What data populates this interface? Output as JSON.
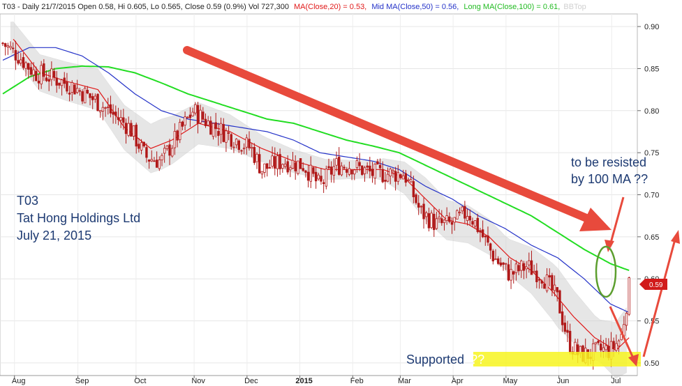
{
  "header": {
    "prefix": "T03 - Daily 21/7/2015 Open 0.58, Hi 0.605, Lo 0.565, Close 0.59 (0.9%) Vol 727,300",
    "ma20_label": "MA(Close,20) = 0.53,",
    "ma50_label": "Mid MA(Close,50) = 0.56,",
    "ma100_label": "Long MA(Close,100) = 0.61,",
    "watermark": "BBTop"
  },
  "annotations": {
    "ticker": "T03",
    "company": "Tat Hong Holdings Ltd",
    "date": "July 21, 2015",
    "resist_line1": "to be resisted",
    "resist_line2": "by 100 MA ??",
    "support_text": "Supported",
    "support_marks": "??"
  },
  "price_tag": "0.59",
  "colors": {
    "candle": "#b01818",
    "ma20": "#e01818",
    "ma50": "#2432c8",
    "ma100": "#22dd22",
    "band": "#cfcfcf",
    "arrow": "#e84a3c",
    "ellipse": "#5c9e2e",
    "support_zone": "#f7f520",
    "text_annotation": "#1d3a72"
  },
  "chart_data": {
    "type": "candlestick",
    "title": "T03 - Daily 21/7/2015",
    "ylim": [
      0.485,
      0.915
    ],
    "y_ticks": [
      0.5,
      0.55,
      0.6,
      0.65,
      0.7,
      0.75,
      0.8,
      0.85,
      0.9
    ],
    "x_ticks": [
      "Aug",
      "Sep",
      "Oct",
      "Nov",
      "Dec",
      "2015",
      "Feb",
      "Mar",
      "Apr",
      "May",
      "Jun",
      "Jul"
    ],
    "x_tick_month_index": [
      0.3,
      1.5,
      2.6,
      3.7,
      4.7,
      5.7,
      6.7,
      7.6,
      8.6,
      9.6,
      10.6,
      11.6
    ],
    "grid": true,
    "close_anchors": [
      {
        "t": 0.0,
        "v": 0.88
      },
      {
        "t": 0.3,
        "v": 0.865
      },
      {
        "t": 0.6,
        "v": 0.845
      },
      {
        "t": 0.9,
        "v": 0.84
      },
      {
        "t": 1.3,
        "v": 0.83
      },
      {
        "t": 1.8,
        "v": 0.81
      },
      {
        "t": 2.1,
        "v": 0.795
      },
      {
        "t": 2.4,
        "v": 0.78
      },
      {
        "t": 2.7,
        "v": 0.745
      },
      {
        "t": 3.0,
        "v": 0.74
      },
      {
        "t": 3.3,
        "v": 0.77
      },
      {
        "t": 3.6,
        "v": 0.8
      },
      {
        "t": 3.9,
        "v": 0.785
      },
      {
        "t": 4.3,
        "v": 0.77
      },
      {
        "t": 4.7,
        "v": 0.755
      },
      {
        "t": 4.9,
        "v": 0.73
      },
      {
        "t": 5.3,
        "v": 0.74
      },
      {
        "t": 5.7,
        "v": 0.735
      },
      {
        "t": 6.0,
        "v": 0.71
      },
      {
        "t": 6.3,
        "v": 0.735
      },
      {
        "t": 6.6,
        "v": 0.735
      },
      {
        "t": 7.0,
        "v": 0.725
      },
      {
        "t": 7.3,
        "v": 0.725
      },
      {
        "t": 7.6,
        "v": 0.725
      },
      {
        "t": 7.9,
        "v": 0.68
      },
      {
        "t": 8.2,
        "v": 0.665
      },
      {
        "t": 8.5,
        "v": 0.665
      },
      {
        "t": 8.8,
        "v": 0.68
      },
      {
        "t": 9.0,
        "v": 0.66
      },
      {
        "t": 9.3,
        "v": 0.625
      },
      {
        "t": 9.6,
        "v": 0.605
      },
      {
        "t": 9.9,
        "v": 0.615
      },
      {
        "t": 10.2,
        "v": 0.605
      },
      {
        "t": 10.5,
        "v": 0.575
      },
      {
        "t": 10.7,
        "v": 0.525
      },
      {
        "t": 10.9,
        "v": 0.51
      },
      {
        "t": 11.1,
        "v": 0.51
      },
      {
        "t": 11.3,
        "v": 0.515
      },
      {
        "t": 11.5,
        "v": 0.515
      },
      {
        "t": 11.7,
        "v": 0.53
      },
      {
        "t": 11.85,
        "v": 0.59
      }
    ],
    "ma20_anchors": [
      {
        "t": 0.2,
        "v": 0.885
      },
      {
        "t": 0.7,
        "v": 0.845
      },
      {
        "t": 1.2,
        "v": 0.835
      },
      {
        "t": 1.8,
        "v": 0.825
      },
      {
        "t": 2.3,
        "v": 0.78
      },
      {
        "t": 2.8,
        "v": 0.755
      },
      {
        "t": 3.2,
        "v": 0.765
      },
      {
        "t": 3.7,
        "v": 0.785
      },
      {
        "t": 4.3,
        "v": 0.775
      },
      {
        "t": 4.9,
        "v": 0.755
      },
      {
        "t": 5.5,
        "v": 0.74
      },
      {
        "t": 6.1,
        "v": 0.73
      },
      {
        "t": 6.6,
        "v": 0.73
      },
      {
        "t": 7.2,
        "v": 0.73
      },
      {
        "t": 7.6,
        "v": 0.72
      },
      {
        "t": 8.0,
        "v": 0.695
      },
      {
        "t": 8.4,
        "v": 0.67
      },
      {
        "t": 8.8,
        "v": 0.665
      },
      {
        "t": 9.2,
        "v": 0.65
      },
      {
        "t": 9.6,
        "v": 0.625
      },
      {
        "t": 10.0,
        "v": 0.61
      },
      {
        "t": 10.4,
        "v": 0.585
      },
      {
        "t": 10.8,
        "v": 0.555
      },
      {
        "t": 11.2,
        "v": 0.53
      },
      {
        "t": 11.6,
        "v": 0.515
      },
      {
        "t": 11.85,
        "v": 0.53
      }
    ],
    "ma50_anchors": [
      {
        "t": 0.0,
        "v": 0.86
      },
      {
        "t": 0.5,
        "v": 0.875
      },
      {
        "t": 1.0,
        "v": 0.875
      },
      {
        "t": 1.5,
        "v": 0.865
      },
      {
        "t": 2.0,
        "v": 0.845
      },
      {
        "t": 2.5,
        "v": 0.82
      },
      {
        "t": 3.0,
        "v": 0.8
      },
      {
        "t": 3.5,
        "v": 0.79
      },
      {
        "t": 4.0,
        "v": 0.785
      },
      {
        "t": 4.5,
        "v": 0.78
      },
      {
        "t": 5.0,
        "v": 0.775
      },
      {
        "t": 5.5,
        "v": 0.765
      },
      {
        "t": 6.0,
        "v": 0.75
      },
      {
        "t": 6.5,
        "v": 0.745
      },
      {
        "t": 7.0,
        "v": 0.74
      },
      {
        "t": 7.5,
        "v": 0.73
      },
      {
        "t": 8.0,
        "v": 0.71
      },
      {
        "t": 8.5,
        "v": 0.695
      },
      {
        "t": 9.0,
        "v": 0.675
      },
      {
        "t": 9.5,
        "v": 0.66
      },
      {
        "t": 10.0,
        "v": 0.64
      },
      {
        "t": 10.5,
        "v": 0.625
      },
      {
        "t": 11.0,
        "v": 0.6
      },
      {
        "t": 11.5,
        "v": 0.57
      },
      {
        "t": 11.85,
        "v": 0.56
      }
    ],
    "ma100_anchors": [
      {
        "t": 0.0,
        "v": 0.82
      },
      {
        "t": 0.5,
        "v": 0.84
      },
      {
        "t": 1.0,
        "v": 0.85
      },
      {
        "t": 1.5,
        "v": 0.853
      },
      {
        "t": 2.0,
        "v": 0.852
      },
      {
        "t": 2.5,
        "v": 0.845
      },
      {
        "t": 3.0,
        "v": 0.833
      },
      {
        "t": 3.5,
        "v": 0.82
      },
      {
        "t": 4.0,
        "v": 0.81
      },
      {
        "t": 4.5,
        "v": 0.8
      },
      {
        "t": 5.0,
        "v": 0.79
      },
      {
        "t": 5.5,
        "v": 0.785
      },
      {
        "t": 6.0,
        "v": 0.775
      },
      {
        "t": 6.5,
        "v": 0.765
      },
      {
        "t": 7.0,
        "v": 0.758
      },
      {
        "t": 7.5,
        "v": 0.75
      },
      {
        "t": 8.0,
        "v": 0.735
      },
      {
        "t": 8.5,
        "v": 0.72
      },
      {
        "t": 9.0,
        "v": 0.705
      },
      {
        "t": 9.5,
        "v": 0.69
      },
      {
        "t": 10.0,
        "v": 0.675
      },
      {
        "t": 10.5,
        "v": 0.655
      },
      {
        "t": 11.0,
        "v": 0.635
      },
      {
        "t": 11.5,
        "v": 0.618
      },
      {
        "t": 11.85,
        "v": 0.61
      }
    ],
    "band_halfwidth_anchors": [
      {
        "t": 0.0,
        "v": 0.02
      },
      {
        "t": 2.0,
        "v": 0.025
      },
      {
        "t": 3.0,
        "v": 0.03
      },
      {
        "t": 5.0,
        "v": 0.015
      },
      {
        "t": 7.0,
        "v": 0.01
      },
      {
        "t": 8.0,
        "v": 0.025
      },
      {
        "t": 9.5,
        "v": 0.02
      },
      {
        "t": 10.5,
        "v": 0.035
      },
      {
        "t": 11.3,
        "v": 0.025
      },
      {
        "t": 11.85,
        "v": 0.04
      }
    ],
    "support_level": 0.5,
    "resistance_ellipse_center": {
      "t": 11.95,
      "v": 0.6
    }
  }
}
